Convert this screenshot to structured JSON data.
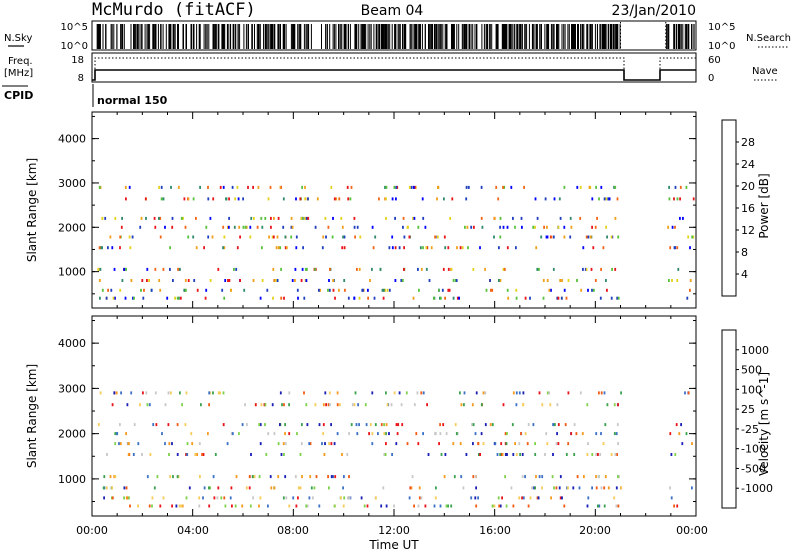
{
  "header": {
    "station": "McMurdo (fitACF)",
    "beam": "Beam 04",
    "date": "23/Jan/2010"
  },
  "strip": {
    "nsky_label": "N.Sky",
    "nsky_ticks": [
      "10^5",
      "10^0"
    ],
    "nsearch_label": "N.Search",
    "nsearch_ticks": [
      "10^5",
      "10^0"
    ],
    "freq_label": "Freq.",
    "freq_unit": "[MHz]",
    "freq_ticks": [
      "18",
      "8"
    ],
    "nave_label": "Nave",
    "nave_ticks": [
      "60",
      "0"
    ],
    "cpid_label": "CPID",
    "cpid_value": "normal 150"
  },
  "chart_data": [
    {
      "type": "heatmap",
      "name": "power",
      "ylabel": "Slant Range [km]",
      "yticks": [
        "1000",
        "2000",
        "3000",
        "4000"
      ],
      "ylim": [
        180,
        4600
      ],
      "colorbar_label": "Power [dB]",
      "colorbar_ticks": [
        "4",
        "8",
        "12",
        "16",
        "20",
        "24",
        "28"
      ],
      "colors": [
        "#0000ff",
        "#1f3fbf",
        "#2f8a6a",
        "#58c13c",
        "#e4d21c",
        "#f0a01a",
        "#f26617",
        "#e8141a"
      ],
      "range_gates_km": [
        400,
        580,
        800,
        1050,
        1540,
        1780,
        2000,
        2200,
        2640,
        2900
      ],
      "ticks_hours": [
        0,
        4,
        8,
        12,
        16,
        20,
        24
      ],
      "gaps_hours": [
        [
          21.0,
          22.8
        ]
      ]
    },
    {
      "type": "heatmap",
      "name": "velocity",
      "ylabel": "Slant Range [km]",
      "yticks": [
        "1000",
        "2000",
        "3000",
        "4000"
      ],
      "ylim": [
        180,
        4600
      ],
      "colorbar_label": "Velocity [m s^-1]",
      "colorbar_ticks": [
        "1000",
        "500",
        "100",
        "25",
        "-25",
        "-100",
        "-500",
        "-1000"
      ],
      "colors": [
        "#1a1fb5",
        "#3d71c6",
        "#3aa14e",
        "#7fd14a",
        "#c8c8c8",
        "#f6cb58",
        "#f59a1f",
        "#f05a12",
        "#e8141a"
      ],
      "range_gates_km": [
        400,
        580,
        800,
        1050,
        1540,
        1780,
        2000,
        2200,
        2640,
        2900
      ],
      "ticks_hours": [
        0,
        4,
        8,
        12,
        16,
        20,
        24
      ],
      "gaps_hours": [
        [
          21.0,
          22.8
        ]
      ]
    }
  ],
  "xaxis": {
    "tick_labels": [
      "00:00",
      "04:00",
      "08:00",
      "12:00",
      "16:00",
      "20:00",
      "00:00"
    ],
    "label": "Time UT"
  }
}
